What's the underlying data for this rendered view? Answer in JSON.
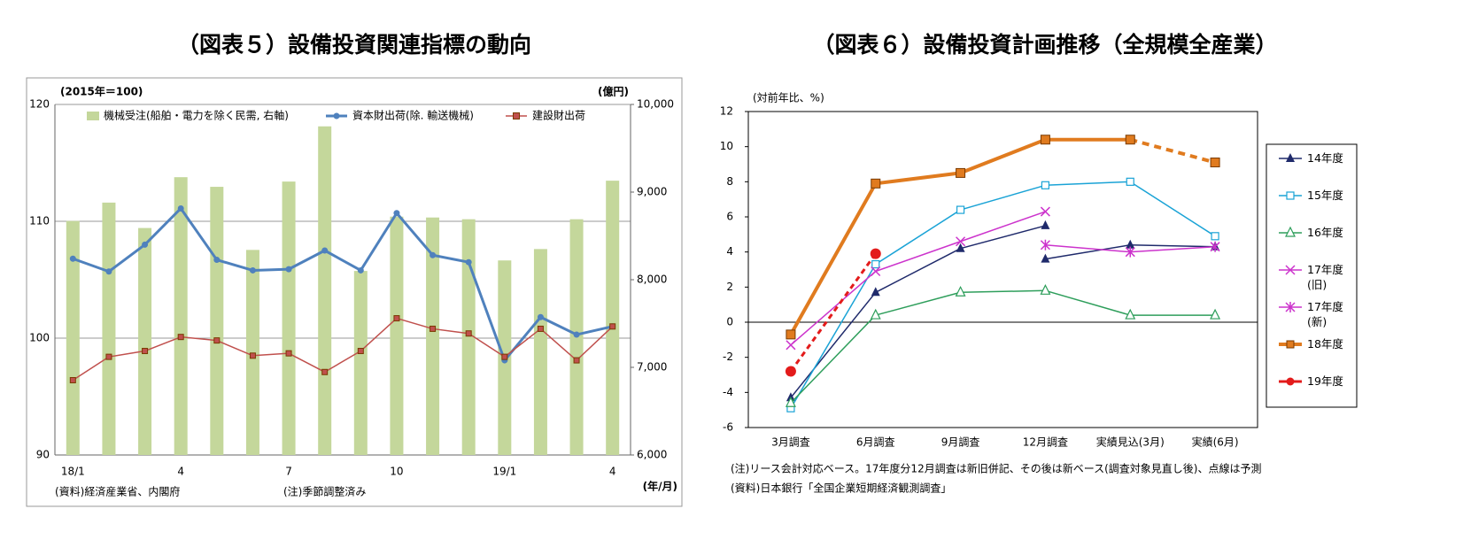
{
  "chart_data": [
    {
      "type": "bar_line",
      "title": "（図表５）設備投資関連指標の動向",
      "ylabel": "(2015年＝100)",
      "y2label": "(億円)",
      "xlabel": "(年/月)",
      "source": "(資料)経済産業省、内閣府",
      "note": "(注)季節調整済み",
      "categories": [
        "18/1",
        null,
        null,
        "4",
        null,
        null,
        "7",
        null,
        null,
        "10",
        null,
        null,
        "19/1",
        null,
        null,
        "4"
      ],
      "ylim": [
        90,
        120
      ],
      "yticks": [
        90,
        100,
        110,
        120
      ],
      "y2lim": [
        6000,
        10000
      ],
      "y2ticks": [
        {
          "value": 6000,
          "label": "6,000"
        },
        {
          "value": 7000,
          "label": "7,000"
        },
        {
          "value": 8000,
          "label": "8,000"
        },
        {
          "value": 9000,
          "label": "9,000"
        },
        {
          "value": 10000,
          "label": "10,000"
        }
      ],
      "grid": true,
      "series": [
        {
          "name": "機械受注(船舶・電力を除く民需, 右軸)",
          "type": "bar",
          "axis": "y2",
          "color": "#c4d79b",
          "values": [
            8670,
            8880,
            8590,
            9170,
            9060,
            8340,
            9120,
            9750,
            8100,
            8720,
            8710,
            8690,
            8220,
            8350,
            8690,
            9130
          ]
        },
        {
          "name": "資本財出荷(除. 輸送機械)",
          "type": "line",
          "color": "#4f81bd",
          "marker": "circle",
          "values": [
            106.8,
            105.7,
            108.0,
            111.1,
            106.7,
            105.8,
            105.9,
            107.5,
            105.8,
            110.7,
            107.1,
            106.5,
            98.1,
            101.8,
            100.3,
            101.0
          ]
        },
        {
          "name": "建設財出荷",
          "type": "line",
          "color": "#c0504d",
          "marker": "square",
          "values": [
            96.4,
            98.4,
            98.9,
            100.1,
            99.8,
            98.5,
            98.7,
            97.1,
            98.9,
            101.7,
            100.8,
            100.4,
            98.4,
            100.8,
            98.1,
            101.0
          ]
        }
      ]
    },
    {
      "type": "line",
      "title": "（図表６）設備投資計画推移（全規模全産業）",
      "ylabel": "(対前年比、%)",
      "notes": [
        "(注)リース会計対応ベース。17年度分12月調査は新旧併記、その後は新ベース(調査対象見直し後)、点線は予測",
        "(資料)日本銀行「全国企業短期経済観測調査」"
      ],
      "categories": [
        "3月調査",
        "6月調査",
        "9月調査",
        "12月調査",
        "実績見込(3月)",
        "実績(6月)"
      ],
      "ylim": [
        -6,
        12
      ],
      "yticks": [
        -6,
        -4,
        -2,
        0,
        2,
        4,
        6,
        8,
        10,
        12
      ],
      "legend": "right",
      "series": [
        {
          "name": "14年度",
          "color": "#1f2a6b",
          "marker": "triangle",
          "values": [
            -4.3,
            1.7,
            4.2,
            5.5,
            null,
            null
          ]
        },
        {
          "name": "14年度",
          "color": "#1f2a6b",
          "marker": "triangle",
          "legend": false,
          "values": [
            null,
            null,
            null,
            3.6,
            4.4,
            4.3
          ]
        },
        {
          "name": "15年度",
          "color": "#1aa3d6",
          "marker": "square-open",
          "values": [
            -4.9,
            3.3,
            6.4,
            7.8,
            8.0,
            4.9
          ]
        },
        {
          "name": "16年度",
          "color": "#2e9e5b",
          "marker": "triangle-open",
          "values": [
            -4.6,
            0.4,
            1.7,
            1.8,
            0.4,
            0.4
          ]
        },
        {
          "name": "17年度(旧)",
          "color": "#cc33cc",
          "marker": "x",
          "values": [
            -1.3,
            2.9,
            4.6,
            6.3,
            null,
            null
          ]
        },
        {
          "name": "17年度(新)",
          "color": "#cc33cc",
          "marker": "asterisk",
          "values": [
            null,
            null,
            null,
            4.4,
            4.0,
            4.3
          ]
        },
        {
          "name": "18年度",
          "color": "#e07b1f",
          "marker": "square",
          "width": 4,
          "dash_from": 4,
          "values": [
            -0.7,
            7.9,
            8.5,
            10.4,
            10.4,
            9.1
          ]
        },
        {
          "name": "19年度",
          "color": "#e31b1b",
          "marker": "circle",
          "width": 3,
          "dash_from": 0,
          "values": [
            -2.8,
            3.9,
            null,
            null,
            null,
            null
          ]
        }
      ]
    }
  ]
}
